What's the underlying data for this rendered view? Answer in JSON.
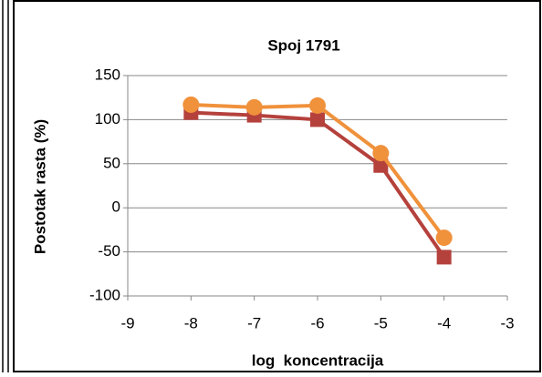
{
  "chart_data": {
    "type": "line",
    "title": "Spoj 1791",
    "x_label": "log  koncentracija",
    "y_label": "Postotak rasta (%)",
    "x": [
      -8,
      -7,
      -6,
      -5,
      -4
    ],
    "series": [
      {
        "color": "#b5413c",
        "marker": "square",
        "values": [
          108,
          105,
          100,
          48,
          -56
        ]
      },
      {
        "color": "#f0913b",
        "marker": "circle",
        "values": [
          117,
          114,
          116,
          62,
          -34
        ]
      }
    ],
    "xlim": [
      -9,
      -3
    ],
    "xticks": [
      -9,
      -8,
      -7,
      -6,
      -5,
      -4,
      -3
    ],
    "ylim": [
      -100,
      150
    ],
    "yticks": [
      -100,
      -50,
      0,
      50,
      100,
      150
    ],
    "grid": true
  }
}
